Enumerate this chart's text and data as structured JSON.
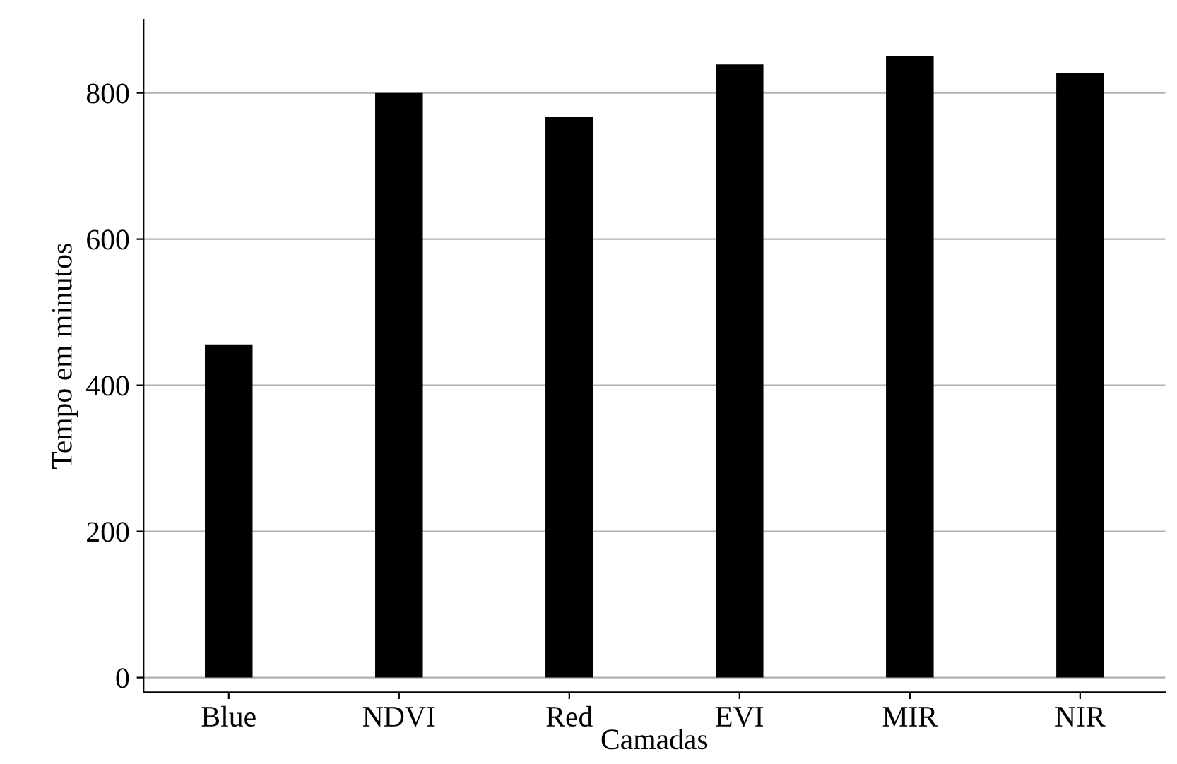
{
  "chart_data": {
    "type": "bar",
    "xlabel": "Camadas",
    "ylabel": "Tempo em minutos",
    "categories": [
      "Blue",
      "NDVI",
      "Red",
      "EVI",
      "MIR",
      "NIR"
    ],
    "values": [
      456,
      800,
      767,
      839,
      850,
      827
    ],
    "color": "#000000",
    "ylim": [
      -20,
      900
    ],
    "yticks": [
      0,
      200,
      400,
      600,
      800
    ],
    "grid": "y"
  }
}
